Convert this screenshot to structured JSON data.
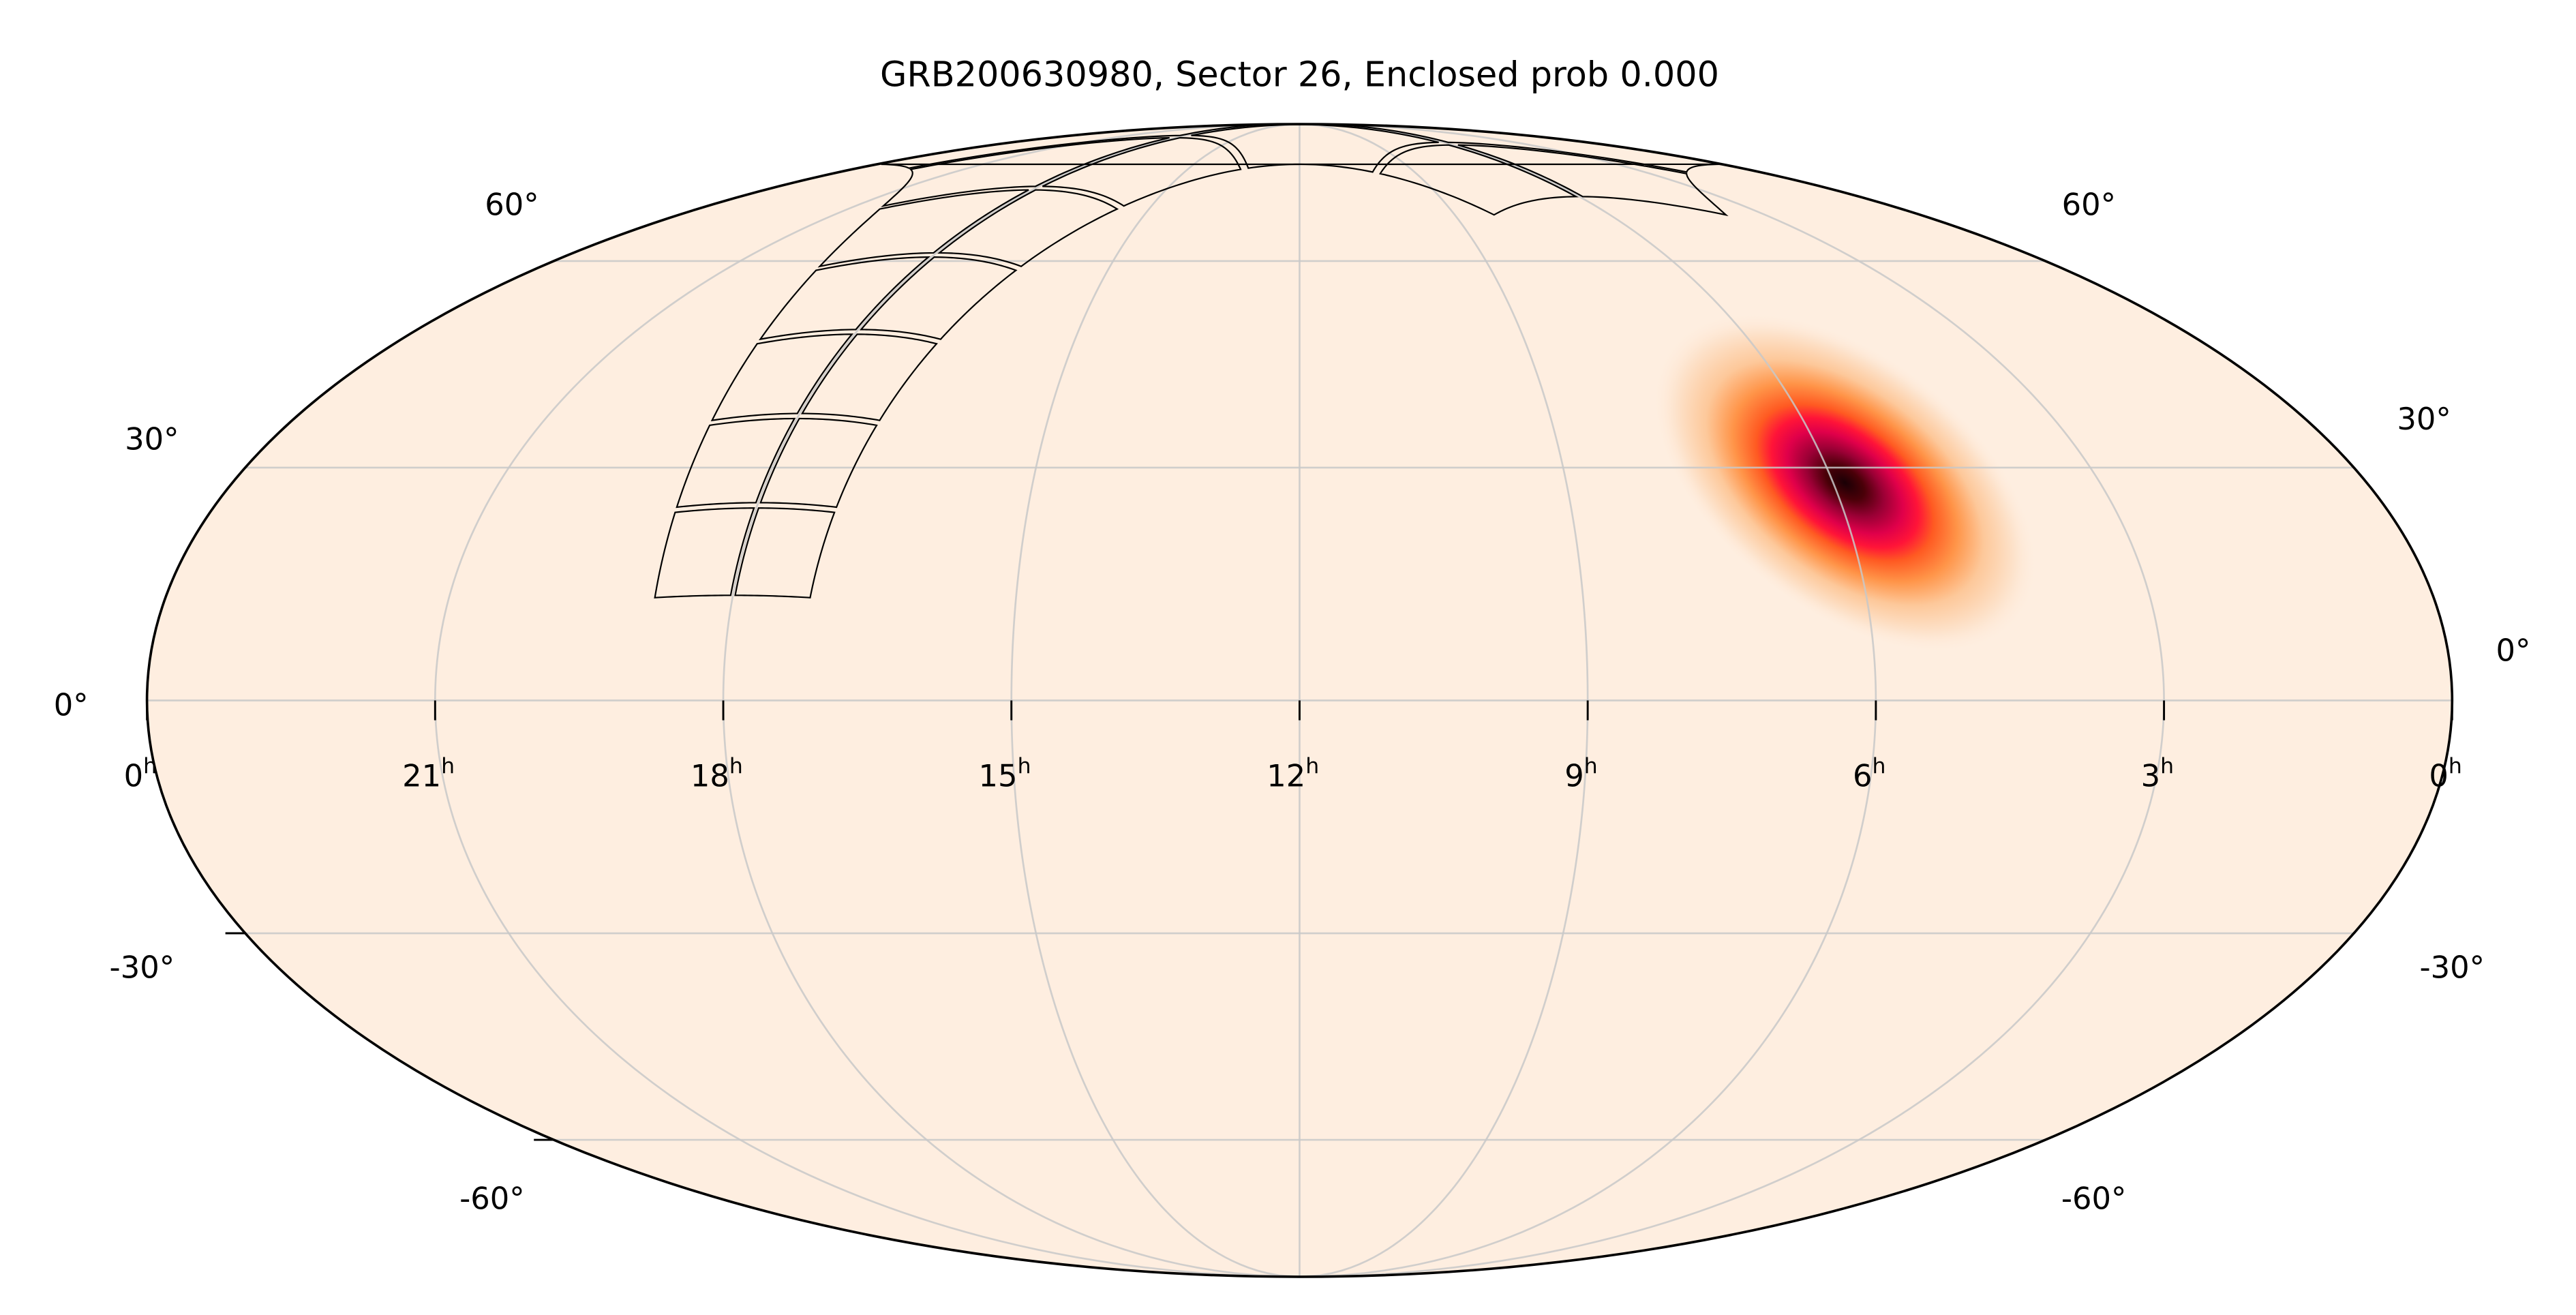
{
  "chart_data": {
    "type": "heatmap",
    "projection": "mollweide",
    "title": "GRB200630980, Sector 26, Enclosed prob 0.000",
    "ra_tick_labels": [
      "0",
      "21",
      "18",
      "15",
      "12",
      "9",
      "6",
      "3",
      "0"
    ],
    "ra_tick_values_hours": [
      24,
      21,
      18,
      15,
      12,
      9,
      6,
      3,
      0
    ],
    "ra_unit": "h",
    "dec_tick_labels_left": [
      "60°",
      "30°",
      "0°",
      "-30°",
      "-60°"
    ],
    "dec_tick_labels_right": [
      "60°",
      "30°",
      "0°",
      "-30°",
      "-60°"
    ],
    "dec_grid_values": [
      -60,
      -30,
      0,
      30,
      60
    ],
    "grid": true,
    "colormap": [
      "#feeee0",
      "#fdd2ac",
      "#ff9a50",
      "#ff5a22",
      "#ff0a3c",
      "#b0003f",
      "#5c0010",
      "#1a0005"
    ],
    "background_color": "#feeee0",
    "localization": {
      "name": "GRB200630980",
      "center_ra_deg": 88,
      "center_dec_deg": 28
    },
    "footprint": {
      "sector": "26",
      "enclosed_prob": "0.000",
      "strip_start_ra_deg": 270,
      "strip_start_dec_deg": 13,
      "cameras": 4,
      "camera_size_deg": 24,
      "ccd_grid": [
        2,
        2
      ]
    }
  }
}
